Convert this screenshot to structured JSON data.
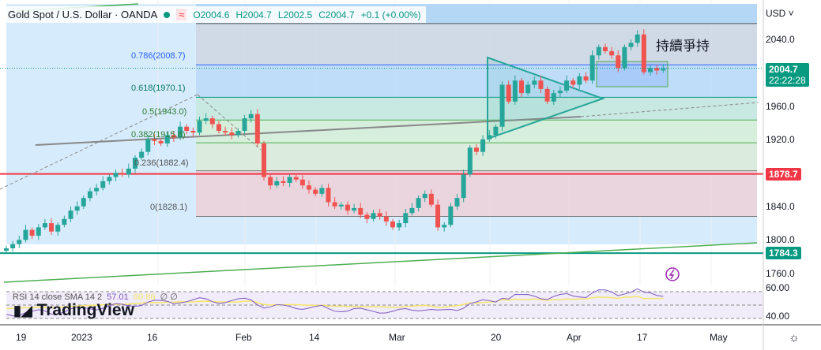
{
  "header": {
    "symbol": "Gold Spot / U.S. Dollar · OANDA",
    "open": "O2004.6",
    "high": "H2004.7",
    "low": "L2002.5",
    "close": "C2004.7",
    "change": "+0.1 (+0.00%)",
    "status_icon": "market-open-dot",
    "wave_icon": "approx-icon"
  },
  "price_axis": {
    "currency": "USD",
    "ticks": [
      "2040.0",
      "1960.0",
      "1920.0",
      "1840.0",
      "1800.0",
      "1760.0"
    ],
    "last_price": "2004.7",
    "countdown": "22:22:28",
    "red_level": "1878.7",
    "green_level": "1784.3"
  },
  "fib_labels": [
    "0.786(2008.7)",
    "0.618(1970.1)",
    "0.5(1943.0)",
    "0.382(1915.8)",
    "0.236(1882.4)",
    "0(1828.1)"
  ],
  "annotation": "持續爭持",
  "rsi": {
    "label": "RSI 14 close SMA 14 2",
    "value": "57.01",
    "sma": "60.86",
    "extra": "∅ ∅",
    "ticks": [
      "60.00",
      "40.00"
    ]
  },
  "logo": "TradingView",
  "colors": {
    "up": "#26a69a",
    "down": "#ef5350",
    "red_line": "#f23645",
    "green_line": "#089981"
  },
  "chart_data": {
    "type": "candlestick",
    "title": "Gold Spot / U.S. Dollar · OANDA",
    "ylim": [
      1745,
      2070
    ],
    "x_ticks": [
      "19",
      "2023",
      "16",
      "Feb",
      "14",
      "Mar",
      "20",
      "Apr",
      "17",
      "May"
    ],
    "closes": [
      1790,
      1795,
      1800,
      1812,
      1805,
      1815,
      1820,
      1810,
      1818,
      1825,
      1835,
      1840,
      1850,
      1858,
      1862,
      1870,
      1875,
      1880,
      1878,
      1885,
      1898,
      1905,
      1920,
      1918,
      1915,
      1925,
      1922,
      1935,
      1930,
      1928,
      1942,
      1945,
      1938,
      1930,
      1928,
      1925,
      1930,
      1945,
      1950,
      1915,
      1875,
      1865,
      1870,
      1868,
      1875,
      1872,
      1865,
      1860,
      1855,
      1862,
      1845,
      1840,
      1842,
      1835,
      1838,
      1830,
      1825,
      1832,
      1828,
      1822,
      1815,
      1820,
      1832,
      1838,
      1850,
      1855,
      1842,
      1815,
      1818,
      1840,
      1850,
      1878,
      1910,
      1905,
      1920,
      1925,
      1935,
      1985,
      1965,
      1990,
      1975,
      1985,
      1990,
      1980,
      1965,
      1975,
      1978,
      1990,
      1985,
      1995,
      1990,
      2020,
      2030,
      2025,
      2020,
      2005,
      2030,
      2035,
      2045,
      2000,
      2005,
      2002,
      2004.7
    ],
    "fib_levels": [
      2058,
      2008.7,
      1970.1,
      1943.0,
      1915.8,
      1882.4,
      1828.1
    ]
  }
}
